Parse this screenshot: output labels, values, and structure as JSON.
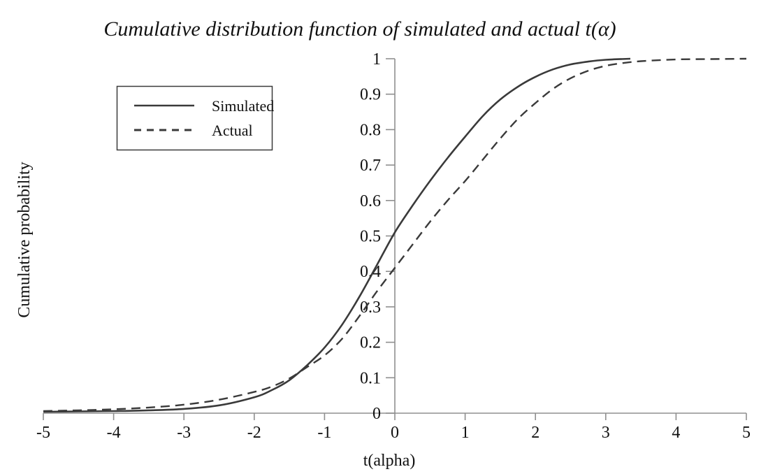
{
  "colors": {
    "curve": "#3a3a3a",
    "axis": "#8f8f8f",
    "text": "#111111",
    "background": "#ffffff",
    "legend_border": "#3a3a3a"
  },
  "chart_data": {
    "type": "line",
    "title": "Cumulative distribution function of simulated and actual t(α)",
    "grid": false,
    "x_axis": {
      "title": "t(alpha)",
      "min": -5,
      "max": 5,
      "ticks": [
        -5,
        -4,
        -3,
        -2,
        -1,
        0,
        1,
        2,
        3,
        4,
        5
      ],
      "tick_labels": [
        "-5",
        "-4",
        "-3",
        "-2",
        "-1",
        "0",
        "1",
        "2",
        "3",
        "4",
        "5"
      ]
    },
    "y_axis": {
      "title": "Cumulative probability",
      "min": 0,
      "max": 1,
      "ticks": [
        0,
        0.1,
        0.2,
        0.3,
        0.4,
        0.5,
        0.6,
        0.7,
        0.8,
        0.9,
        1
      ],
      "tick_labels": [
        "0",
        "0.1",
        "0.2",
        "0.3",
        "0.4",
        "0.5",
        "0.6",
        "0.7",
        "0.8",
        "0.9",
        "1"
      ]
    },
    "legend": {
      "position": "upper-left",
      "items": [
        {
          "label": "Simulated",
          "style": "solid"
        },
        {
          "label": "Actual",
          "style": "dashed"
        }
      ]
    },
    "series": [
      {
        "name": "Simulated",
        "style": "solid",
        "points": [
          [
            -5,
            0.004
          ],
          [
            -4.5,
            0.005
          ],
          [
            -4,
            0.006
          ],
          [
            -3.5,
            0.008
          ],
          [
            -3,
            0.012
          ],
          [
            -2.5,
            0.022
          ],
          [
            -2,
            0.045
          ],
          [
            -1.75,
            0.065
          ],
          [
            -1.5,
            0.093
          ],
          [
            -1.25,
            0.135
          ],
          [
            -1,
            0.185
          ],
          [
            -0.75,
            0.25
          ],
          [
            -0.5,
            0.33
          ],
          [
            -0.25,
            0.42
          ],
          [
            0,
            0.51
          ],
          [
            0.25,
            0.585
          ],
          [
            0.5,
            0.655
          ],
          [
            0.75,
            0.72
          ],
          [
            1,
            0.78
          ],
          [
            1.25,
            0.838
          ],
          [
            1.5,
            0.885
          ],
          [
            1.75,
            0.921
          ],
          [
            2,
            0.949
          ],
          [
            2.25,
            0.97
          ],
          [
            2.5,
            0.984
          ],
          [
            2.75,
            0.992
          ],
          [
            3,
            0.997
          ],
          [
            3.35,
            1.0
          ]
        ]
      },
      {
        "name": "Actual",
        "style": "dashed",
        "points": [
          [
            -5,
            0.006
          ],
          [
            -4.5,
            0.008
          ],
          [
            -4,
            0.011
          ],
          [
            -3.5,
            0.016
          ],
          [
            -3,
            0.024
          ],
          [
            -2.5,
            0.038
          ],
          [
            -2,
            0.06
          ],
          [
            -1.75,
            0.075
          ],
          [
            -1.5,
            0.098
          ],
          [
            -1.25,
            0.13
          ],
          [
            -1,
            0.163
          ],
          [
            -0.75,
            0.21
          ],
          [
            -0.5,
            0.275
          ],
          [
            -0.25,
            0.345
          ],
          [
            0,
            0.41
          ],
          [
            0.25,
            0.475
          ],
          [
            0.5,
            0.54
          ],
          [
            0.75,
            0.6
          ],
          [
            1,
            0.655
          ],
          [
            1.25,
            0.715
          ],
          [
            1.5,
            0.775
          ],
          [
            1.75,
            0.83
          ],
          [
            2,
            0.875
          ],
          [
            2.25,
            0.915
          ],
          [
            2.5,
            0.945
          ],
          [
            2.75,
            0.966
          ],
          [
            3,
            0.98
          ],
          [
            3.25,
            0.988
          ],
          [
            3.5,
            0.993
          ],
          [
            4,
            0.998
          ],
          [
            4.5,
            0.999
          ],
          [
            5,
            1.0
          ]
        ]
      }
    ]
  }
}
